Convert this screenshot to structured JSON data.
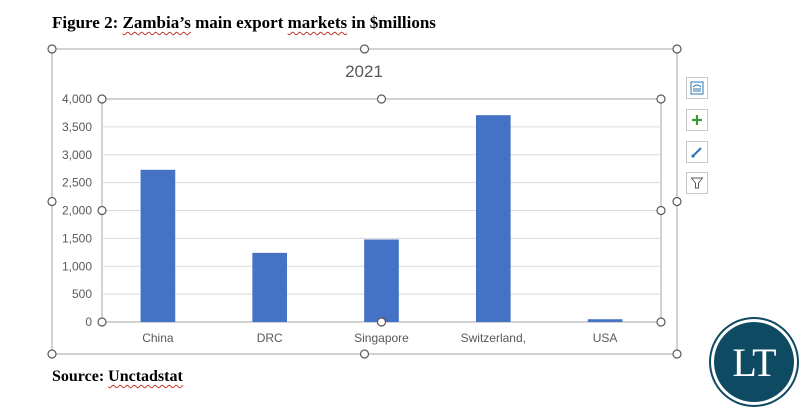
{
  "document": {
    "heading_prefix": "Figure 2: ",
    "heading_word1": "Zambia’s",
    "heading_middle": " main export ",
    "heading_word2": "markets",
    "heading_suffix": " in $millions",
    "source_label": "Source: ",
    "source_value": "Unctadstat"
  },
  "side_tools": [
    "layout-options-icon",
    "chart-elements-icon",
    "chart-styles-icon",
    "chart-filters-icon"
  ],
  "logo": {
    "text": "LT"
  },
  "colors": {
    "bar": "#4472c4",
    "grid": "#d9d9d9",
    "axis_text": "#595959",
    "logo": "#0f4a63"
  },
  "chart_data": {
    "type": "bar",
    "title": "2021",
    "categories": [
      "China",
      "DRC",
      "Singapore",
      "Switzerland,",
      "USA"
    ],
    "values": [
      2730,
      1240,
      1480,
      3710,
      50
    ],
    "xlabel": "",
    "ylabel": "",
    "ylim": [
      0,
      4000
    ],
    "yticks": [
      0,
      500,
      1000,
      1500,
      2000,
      2500,
      3000,
      3500,
      4000
    ],
    "ytick_labels": [
      "0",
      "500",
      "1,000",
      "1,500",
      "2,000",
      "2,500",
      "3,000",
      "3,500",
      "4,000"
    ],
    "grid": true,
    "legend": "none"
  }
}
